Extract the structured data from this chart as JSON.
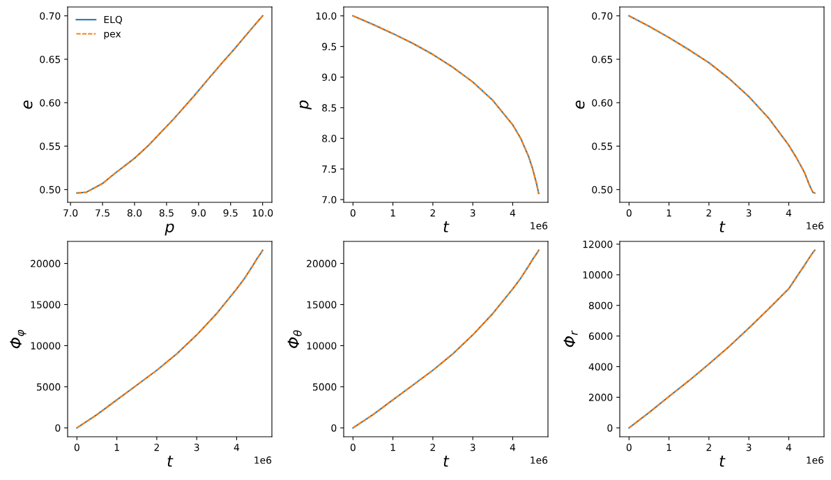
{
  "chart_data": [
    {
      "type": "line",
      "xlabel": "p",
      "ylabel": "e",
      "legend": "top left",
      "x": [
        10.0,
        9.86,
        9.71,
        9.55,
        9.37,
        9.16,
        8.92,
        8.62,
        8.22,
        8.0,
        7.7,
        7.5,
        7.25,
        7.1
      ],
      "series": [
        {
          "name": "ELQ",
          "color": "#1f77b4",
          "line_style": "solid",
          "values": [
            0.7,
            0.688,
            0.675,
            0.661,
            0.646,
            0.628,
            0.607,
            0.582,
            0.551,
            0.536,
            0.519,
            0.507,
            0.497,
            0.496
          ]
        },
        {
          "name": "pex",
          "color": "#ff7f0e",
          "line_style": "dashed",
          "values": [
            0.7,
            0.688,
            0.675,
            0.661,
            0.646,
            0.628,
            0.607,
            0.582,
            0.551,
            0.536,
            0.519,
            0.507,
            0.497,
            0.496
          ]
        }
      ],
      "xlim": [
        6.955,
        10.145
      ],
      "xticks": [
        {
          "value": 7,
          "label": "7.0"
        },
        7.5,
        {
          "value": 8,
          "label": "8.0"
        },
        8.5,
        {
          "value": 9,
          "label": "9.0"
        },
        9.5,
        {
          "value": 10,
          "label": "10.0"
        }
      ],
      "ylim": [
        0.4853,
        0.7102
      ],
      "yticks": [
        {
          "value": 0.5,
          "label": "0.50"
        },
        0.55,
        {
          "value": 0.6,
          "label": "0.60"
        },
        0.65,
        {
          "value": 0.7,
          "label": "0.70"
        }
      ]
    },
    {
      "type": "line",
      "xlabel": "t",
      "ylabel": "p",
      "annotations": [
        "1e6"
      ],
      "x": [
        0,
        0.5,
        1,
        1.5,
        2,
        2.5,
        3,
        3.5,
        4,
        4.2,
        4.4,
        4.5,
        4.6,
        4.65
      ],
      "series": [
        {
          "color": "#1f77b4",
          "line_style": "solid",
          "values": [
            10.0,
            9.86,
            9.71,
            9.55,
            9.37,
            9.16,
            8.92,
            8.62,
            8.22,
            8.0,
            7.7,
            7.5,
            7.25,
            7.1
          ]
        },
        {
          "color": "#ff7f0e",
          "line_style": "dashed",
          "values": [
            10.0,
            9.86,
            9.71,
            9.55,
            9.37,
            9.16,
            8.92,
            8.62,
            8.22,
            8.0,
            7.7,
            7.5,
            7.25,
            7.1
          ]
        }
      ],
      "xlim": [
        -0.2325,
        4.8825
      ],
      "xticks": [
        0,
        1,
        2,
        3,
        4
      ],
      "ylim": [
        6.955,
        10.145
      ],
      "yticks": [
        {
          "value": 7,
          "label": "7.0"
        },
        7.5,
        {
          "value": 8,
          "label": "8.0"
        },
        8.5,
        {
          "value": 9,
          "label": "9.0"
        },
        9.5,
        {
          "value": 10,
          "label": "10.0"
        }
      ]
    },
    {
      "type": "line",
      "xlabel": "t",
      "ylabel": "e",
      "annotations": [
        "1e6"
      ],
      "x": [
        0,
        0.5,
        1,
        1.5,
        2,
        2.5,
        3,
        3.5,
        4,
        4.2,
        4.4,
        4.5,
        4.6,
        4.65
      ],
      "series": [
        {
          "color": "#1f77b4",
          "line_style": "solid",
          "values": [
            0.7,
            0.688,
            0.675,
            0.661,
            0.646,
            0.628,
            0.607,
            0.582,
            0.551,
            0.536,
            0.519,
            0.507,
            0.497,
            0.496
          ]
        },
        {
          "color": "#ff7f0e",
          "line_style": "dashed",
          "values": [
            0.7,
            0.688,
            0.675,
            0.661,
            0.646,
            0.628,
            0.607,
            0.582,
            0.551,
            0.536,
            0.519,
            0.507,
            0.497,
            0.496
          ]
        }
      ],
      "xlim": [
        -0.2325,
        4.8825
      ],
      "xticks": [
        0,
        1,
        2,
        3,
        4
      ],
      "ylim": [
        0.4853,
        0.7102
      ],
      "yticks": [
        {
          "value": 0.5,
          "label": "0.50"
        },
        0.55,
        {
          "value": 0.6,
          "label": "0.60"
        },
        0.65,
        {
          "value": 0.7,
          "label": "0.70"
        }
      ]
    },
    {
      "type": "line",
      "xlabel": "t",
      "ylabel": "Φ$_{φ}$",
      "annotations": [
        "1e6"
      ],
      "x": [
        0,
        0.5,
        1,
        1.5,
        2,
        2.5,
        3,
        3.5,
        4,
        4.2,
        4.4,
        4.5,
        4.6,
        4.65
      ],
      "series": [
        {
          "color": "#1f77b4",
          "line_style": "solid",
          "values": [
            0,
            1600,
            3400,
            5200,
            7000,
            9000,
            11300,
            13900,
            16900,
            18200,
            19700,
            20500,
            21200,
            21600
          ]
        },
        {
          "color": "#ff7f0e",
          "line_style": "dashed",
          "values": [
            0,
            1600,
            3400,
            5200,
            7000,
            9000,
            11300,
            13900,
            16900,
            18200,
            19700,
            20500,
            21200,
            21600
          ]
        }
      ],
      "xlim": [
        -0.2325,
        4.8825
      ],
      "xticks": [
        0,
        1,
        2,
        3,
        4
      ],
      "ylim": [
        -1080,
        22680
      ],
      "yticks": [
        0,
        5000,
        10000,
        15000,
        20000
      ]
    },
    {
      "type": "line",
      "xlabel": "t",
      "ylabel": "Φ$_{θ}$",
      "annotations": [
        "1e6"
      ],
      "x": [
        0,
        0.5,
        1,
        1.5,
        2,
        2.5,
        3,
        3.5,
        4,
        4.2,
        4.4,
        4.5,
        4.6,
        4.65
      ],
      "series": [
        {
          "color": "#1f77b4",
          "line_style": "solid",
          "values": [
            0,
            1600,
            3400,
            5200,
            7000,
            9000,
            11300,
            13900,
            16900,
            18200,
            19700,
            20500,
            21200,
            21600
          ]
        },
        {
          "color": "#ff7f0e",
          "line_style": "dashed",
          "values": [
            0,
            1600,
            3400,
            5200,
            7000,
            9000,
            11300,
            13900,
            16900,
            18200,
            19700,
            20500,
            21200,
            21600
          ]
        }
      ],
      "xlim": [
        -0.2325,
        4.8825
      ],
      "xticks": [
        0,
        1,
        2,
        3,
        4
      ],
      "ylim": [
        -1080,
        22680
      ],
      "yticks": [
        0,
        5000,
        10000,
        15000,
        20000
      ]
    },
    {
      "type": "line",
      "xlabel": "t",
      "ylabel": "Φ$_{r}$",
      "annotations": [
        "1e6"
      ],
      "x": [
        0,
        0.5,
        1,
        1.5,
        2,
        2.5,
        3,
        3.5,
        4,
        4.2,
        4.4,
        4.5,
        4.6,
        4.65
      ],
      "series": [
        {
          "color": "#1f77b4",
          "line_style": "solid",
          "values": [
            0,
            1000,
            2050,
            3080,
            4170,
            5300,
            6520,
            7780,
            9090,
            9870,
            10650,
            11050,
            11440,
            11600
          ]
        },
        {
          "color": "#ff7f0e",
          "line_style": "dashed",
          "values": [
            0,
            1000,
            2050,
            3080,
            4170,
            5300,
            6520,
            7780,
            9090,
            9870,
            10650,
            11050,
            11440,
            11600
          ]
        }
      ],
      "xlim": [
        -0.2325,
        4.8825
      ],
      "xticks": [
        0,
        1,
        2,
        3,
        4
      ],
      "ylim": [
        -580,
        12180
      ],
      "yticks": [
        0,
        2000,
        4000,
        6000,
        8000,
        10000,
        12000
      ]
    }
  ]
}
